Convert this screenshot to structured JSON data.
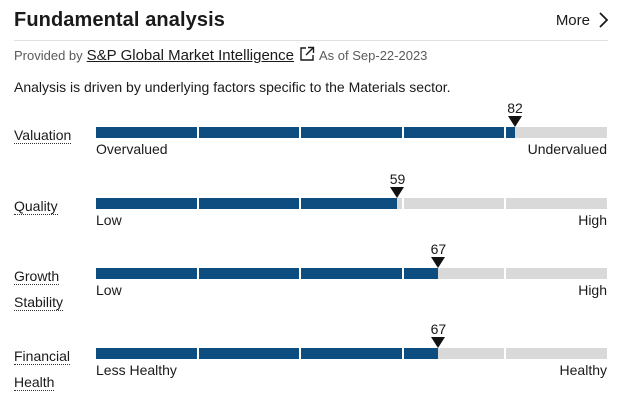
{
  "header": {
    "title": "Fundamental analysis",
    "more_label": "More"
  },
  "provider": {
    "prefix": "Provided by",
    "link_text": "S&P Global Market Intelligence",
    "as_of": "As of Sep-22-2023"
  },
  "description": "Analysis is driven by underlying factors specific to the Materials sector.",
  "metrics": [
    {
      "label_lines": [
        "Valuation"
      ],
      "score": "82",
      "score_value": 82,
      "low_label": "Overvalued",
      "high_label": "Undervalued"
    },
    {
      "label_lines": [
        "Quality"
      ],
      "score": "59",
      "score_value": 59,
      "low_label": "Low",
      "high_label": "High"
    },
    {
      "label_lines": [
        "Growth",
        "Stability"
      ],
      "score": "67",
      "score_value": 67,
      "low_label": "Low",
      "high_label": "High"
    },
    {
      "label_lines": [
        "Financial",
        "Health"
      ],
      "score": "67",
      "score_value": 67,
      "low_label": "Less Healthy",
      "high_label": "Healthy"
    }
  ],
  "colors": {
    "fill": "#0e4d7f",
    "track": "#d9d9d9",
    "marker": "#111111"
  },
  "icons": {
    "more": "chevron-right-icon",
    "external": "external-link-icon",
    "marker": "triangle-down-icon"
  }
}
